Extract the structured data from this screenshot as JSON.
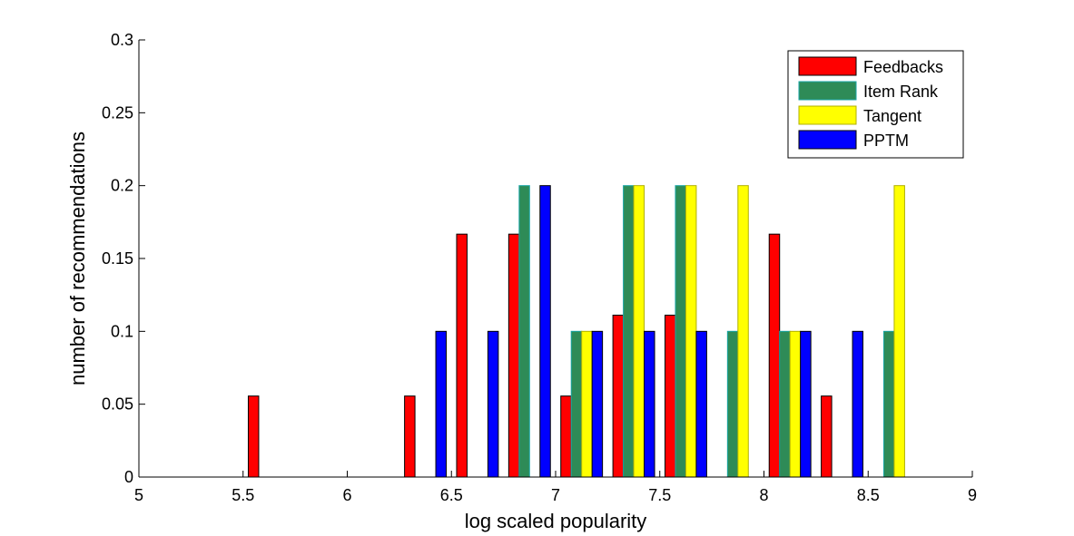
{
  "chart_data": {
    "type": "bar",
    "title": "",
    "xlabel": "log scaled popularity",
    "ylabel": "number of recommendations",
    "xlim": [
      5,
      9
    ],
    "ylim": [
      0,
      0.3
    ],
    "xticks": [
      5,
      5.5,
      6,
      6.5,
      7,
      7.5,
      8,
      8.5,
      9
    ],
    "xtick_labels": [
      "5",
      "5.5",
      "6",
      "6.5",
      "7",
      "7.5",
      "8",
      "8.5",
      "9"
    ],
    "yticks": [
      0,
      0.05,
      0.1,
      0.15,
      0.2,
      0.25,
      0.3
    ],
    "ytick_labels": [
      "0",
      "0.05",
      "0.1",
      "0.15",
      "0.2",
      "0.25",
      "0.3"
    ],
    "grid": false,
    "legend_position": "top-right",
    "bin_centers": [
      5.125,
      5.375,
      5.625,
      5.875,
      6.125,
      6.375,
      6.625,
      6.875,
      7.125,
      7.375,
      7.625,
      7.875,
      8.125,
      8.375,
      8.625,
      8.875
    ],
    "series": [
      {
        "name": "Feedbacks",
        "color": "#ff0000",
        "edge": "#000000",
        "values": [
          0,
          0,
          0.0556,
          0,
          0,
          0.0556,
          0.1667,
          0.1667,
          0.0556,
          0.1111,
          0.1111,
          0,
          0.1667,
          0.0556,
          0,
          0
        ]
      },
      {
        "name": "Item Rank",
        "color": "#2e8b57",
        "edge": "#1aa6a6",
        "values": [
          0,
          0,
          0,
          0,
          0,
          0,
          0,
          0.2,
          0.1,
          0.2,
          0.2,
          0.1,
          0.1,
          0,
          0.1,
          0
        ]
      },
      {
        "name": "Tangent",
        "color": "#ffff00",
        "edge": "#b0b000",
        "values": [
          0,
          0,
          0,
          0,
          0,
          0,
          0,
          0,
          0.1,
          0.2,
          0.2,
          0.2,
          0.1,
          0,
          0.2,
          0
        ]
      },
      {
        "name": "PPTM",
        "color": "#0000ff",
        "edge": "#000000",
        "values": [
          0,
          0,
          0,
          0,
          0,
          0.1,
          0.1,
          0.2,
          0.1,
          0.1,
          0.1,
          0,
          0.1,
          0.1,
          0,
          0
        ]
      }
    ]
  }
}
